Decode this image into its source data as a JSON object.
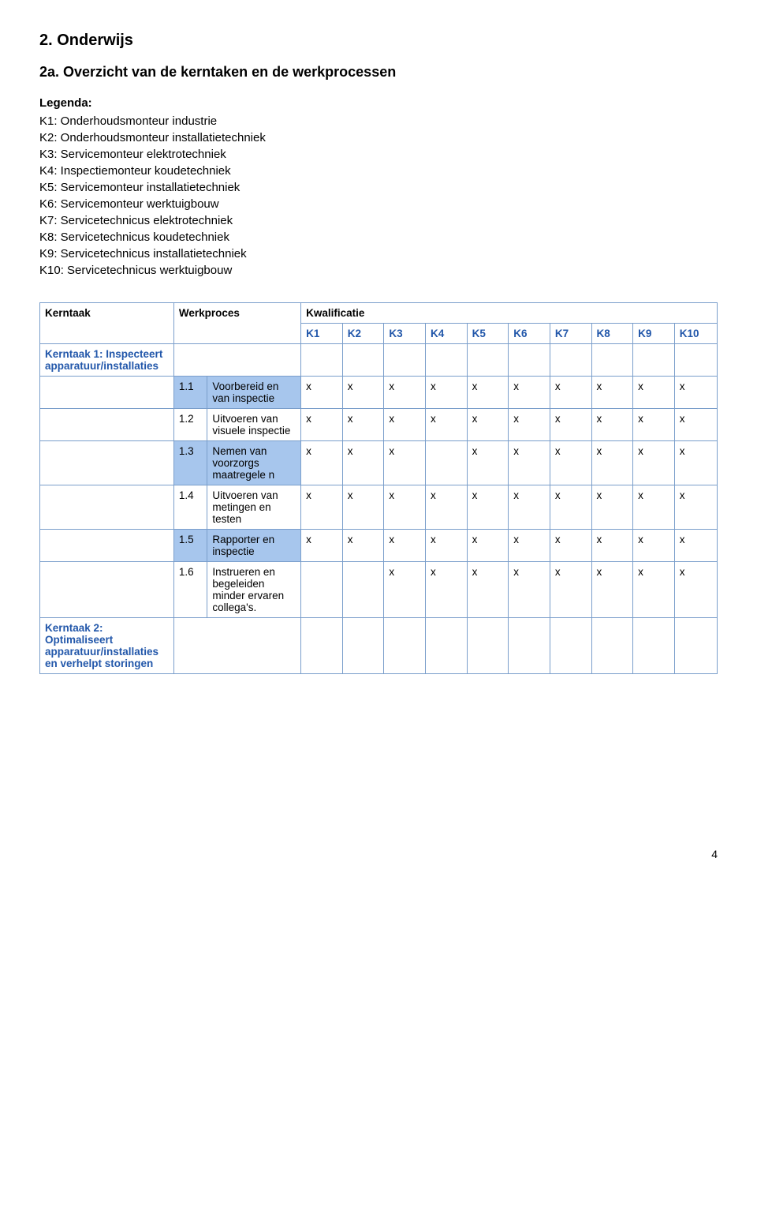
{
  "heading1": "2. Onderwijs",
  "heading2": "2a. Overzicht van de kerntaken en de werkprocessen",
  "legend": {
    "title": "Legenda:",
    "lines": [
      "K1: Onderhoudsmonteur industrie",
      "K2: Onderhoudsmonteur installatietechniek",
      "K3: Servicemonteur elektrotechniek",
      "K4: Inspectiemonteur koudetechniek",
      "K5: Servicemonteur installatietechniek",
      "K6: Servicemonteur werktuigbouw",
      "K7: Servicetechnicus elektrotechniek",
      "K8: Servicetechnicus koudetechniek",
      "K9: Servicetechnicus installatietechniek",
      "K10: Servicetechnicus werktuigbouw"
    ]
  },
  "table": {
    "col_kerntaak": "Kerntaak",
    "col_werkproces": "Werkproces",
    "col_kwalificatie": "Kwalificatie",
    "k_headers": [
      "K1",
      "K2",
      "K3",
      "K4",
      "K5",
      "K6",
      "K7",
      "K8",
      "K9",
      "K10"
    ],
    "kerntaak1": "Kerntaak 1: Inspecteert apparatuur/installaties",
    "kerntaak2": "Kerntaak 2: Optimaliseert apparatuur/installaties en verhelpt storingen",
    "rows": [
      {
        "num": "1.1",
        "desc": "Voorbereid en van inspectie",
        "marks": [
          "x",
          "x",
          "x",
          "x",
          "x",
          "x",
          "x",
          "x",
          "x",
          "x"
        ],
        "shaded": true
      },
      {
        "num": "1.2",
        "desc": "Uitvoeren van visuele inspectie",
        "marks": [
          "x",
          "x",
          "x",
          "x",
          "x",
          "x",
          "x",
          "x",
          "x",
          "x"
        ],
        "shaded": false
      },
      {
        "num": "1.3",
        "desc": "Nemen van voorzorgs maatregele n",
        "marks": [
          "x",
          "x",
          "x",
          "",
          "x",
          "x",
          "x",
          "x",
          "x",
          "x"
        ],
        "shaded": true
      },
      {
        "num": "1.4",
        "desc": "Uitvoeren van metingen en testen",
        "marks": [
          "x",
          "x",
          "x",
          "x",
          "x",
          "x",
          "x",
          "x",
          "x",
          "x"
        ],
        "shaded": false
      },
      {
        "num": "1.5",
        "desc": "Rapporter en inspectie",
        "marks": [
          "x",
          "x",
          "x",
          "x",
          "x",
          "x",
          "x",
          "x",
          "x",
          "x"
        ],
        "shaded": true
      },
      {
        "num": "1.6",
        "desc": "Instrueren en begeleiden minder ervaren collega's.",
        "marks": [
          "",
          "",
          "x",
          "x",
          "x",
          "x",
          "x",
          "x",
          "x",
          "x"
        ],
        "shaded": false
      }
    ]
  },
  "page_number": "4"
}
